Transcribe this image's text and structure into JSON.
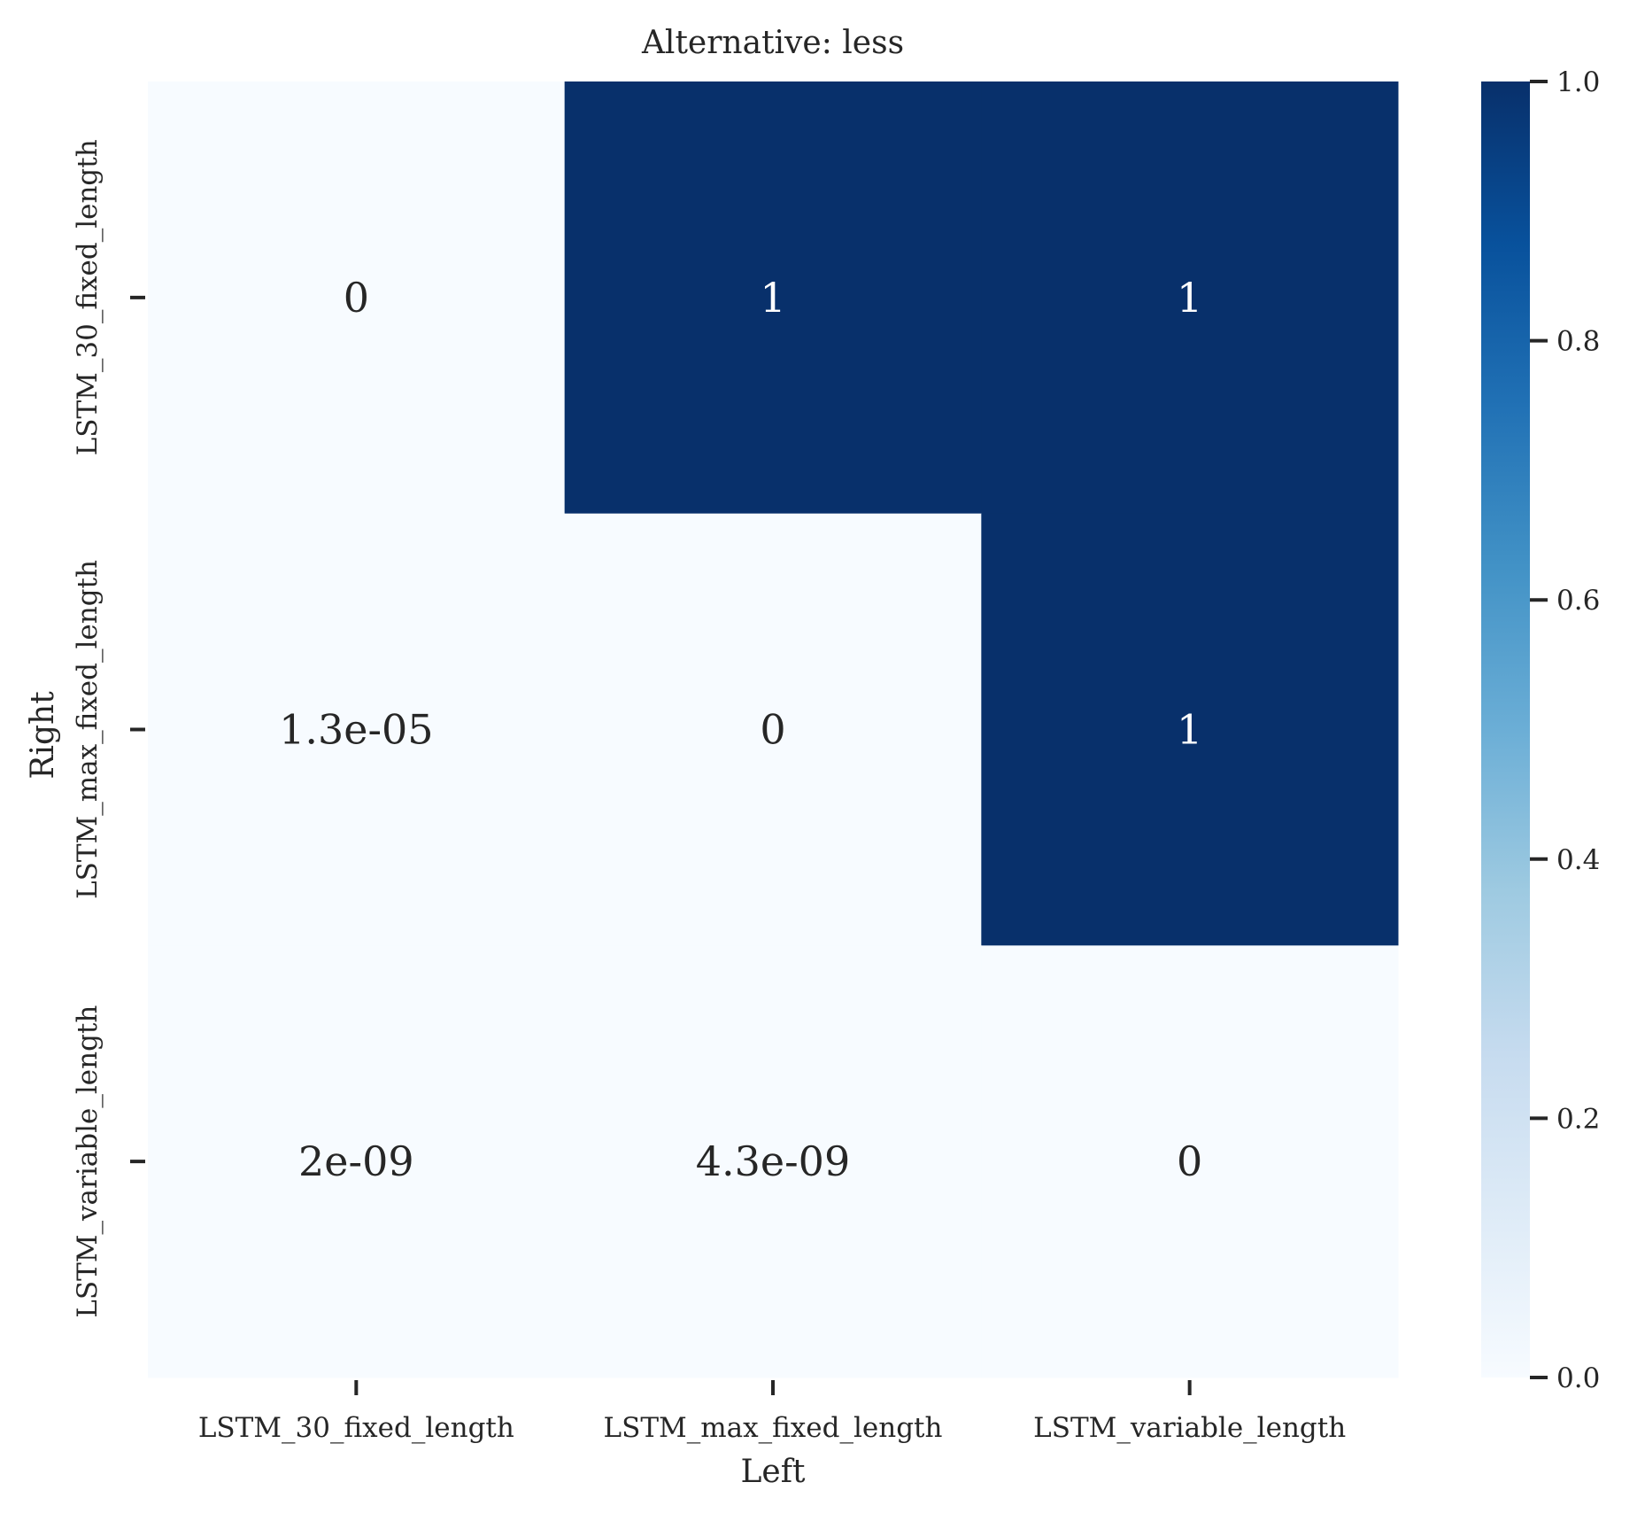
{
  "chart_data": {
    "type": "heatmap",
    "title": "Alternative: less",
    "xlabel": "Left",
    "ylabel": "Right",
    "x_categories": [
      "LSTM_30_fixed_length",
      "LSTM_max_fixed_length",
      "LSTM_variable_length"
    ],
    "y_categories": [
      "LSTM_30_fixed_length",
      "LSTM_max_fixed_length",
      "LSTM_variable_length"
    ],
    "values": [
      [
        0,
        1,
        1
      ],
      [
        1.3e-05,
        0,
        1
      ],
      [
        2e-09,
        4.3e-09,
        0
      ]
    ],
    "annotations": [
      [
        "0",
        "1",
        "1"
      ],
      [
        "1.3e-05",
        "0",
        "1"
      ],
      [
        "2e-09",
        "4.3e-09",
        "0"
      ]
    ],
    "colorbar": {
      "colormap": "Blues",
      "range": [
        0.0,
        1.0
      ],
      "ticks": [
        0.0,
        0.2,
        0.4,
        0.6,
        0.8,
        1.0
      ],
      "tick_labels": [
        "0.0",
        "0.2",
        "0.4",
        "0.6",
        "0.8",
        "1.0"
      ]
    },
    "colors": {
      "low": "#f7fbff",
      "high": "#08306b",
      "text_on_light": "#262626",
      "text_on_dark": "#ffffff",
      "axis": "#262626"
    },
    "grid": false
  }
}
